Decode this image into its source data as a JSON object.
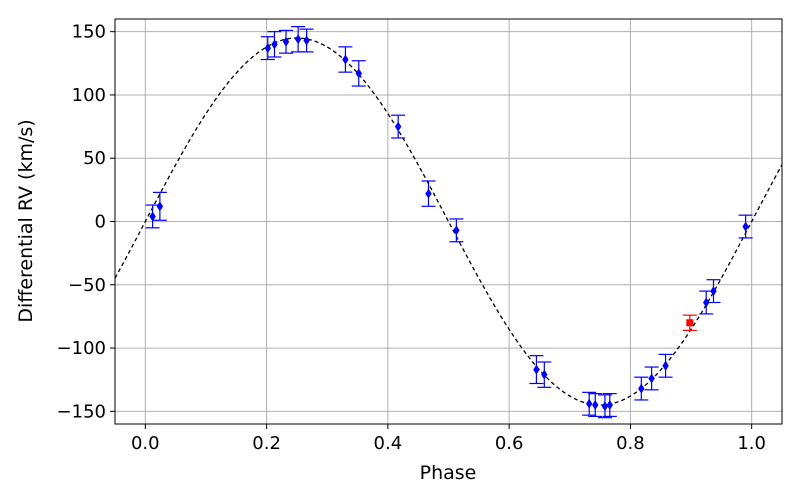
{
  "chart_data": {
    "type": "scatter",
    "title": "",
    "xlabel": "Phase",
    "ylabel": "Differential RV (km/s)",
    "xlim": [
      -0.05,
      1.05
    ],
    "ylim": [
      -160,
      160
    ],
    "xticks": [
      0.0,
      0.2,
      0.4,
      0.6,
      0.8,
      1.0
    ],
    "xtick_labels": [
      "0.0",
      "0.2",
      "0.4",
      "0.6",
      "0.8",
      "1.0"
    ],
    "yticks": [
      -150,
      -100,
      -50,
      0,
      50,
      100,
      150
    ],
    "ytick_labels": [
      "−150",
      "−100",
      "−50",
      "0",
      "50",
      "100",
      "150"
    ],
    "grid": true,
    "model_curve": {
      "style": "dashed",
      "color": "#000000",
      "amplitude": 145,
      "offset": 0,
      "phase_zero": 0.0
    },
    "series": [
      {
        "color": "#0000ff",
        "marker": "diamond",
        "points": [
          {
            "x": 0.012,
            "y": 4,
            "err": 9
          },
          {
            "x": 0.024,
            "y": 12,
            "err": 11
          },
          {
            "x": 0.202,
            "y": 137,
            "err": 9
          },
          {
            "x": 0.213,
            "y": 140,
            "err": 10
          },
          {
            "x": 0.232,
            "y": 142,
            "err": 9
          },
          {
            "x": 0.252,
            "y": 144,
            "err": 10
          },
          {
            "x": 0.266,
            "y": 143,
            "err": 9
          },
          {
            "x": 0.33,
            "y": 128,
            "err": 10
          },
          {
            "x": 0.352,
            "y": 117,
            "err": 10
          },
          {
            "x": 0.417,
            "y": 75,
            "err": 9
          },
          {
            "x": 0.467,
            "y": 22,
            "err": 10
          },
          {
            "x": 0.513,
            "y": -7,
            "err": 9
          },
          {
            "x": 0.645,
            "y": -117,
            "err": 11
          },
          {
            "x": 0.658,
            "y": -121,
            "err": 10
          },
          {
            "x": 0.732,
            "y": -144,
            "err": 9
          },
          {
            "x": 0.742,
            "y": -145,
            "err": 9
          },
          {
            "x": 0.758,
            "y": -146,
            "err": 9
          },
          {
            "x": 0.766,
            "y": -145,
            "err": 9
          },
          {
            "x": 0.818,
            "y": -132,
            "err": 9
          },
          {
            "x": 0.835,
            "y": -124,
            "err": 9
          },
          {
            "x": 0.858,
            "y": -114,
            "err": 9
          },
          {
            "x": 0.925,
            "y": -64,
            "err": 9
          },
          {
            "x": 0.937,
            "y": -55,
            "err": 9
          },
          {
            "x": 0.99,
            "y": -4,
            "err": 9
          }
        ]
      },
      {
        "color": "#ff0000",
        "marker": "square",
        "points": [
          {
            "x": 0.898,
            "y": -80,
            "err": 6
          }
        ]
      }
    ]
  }
}
